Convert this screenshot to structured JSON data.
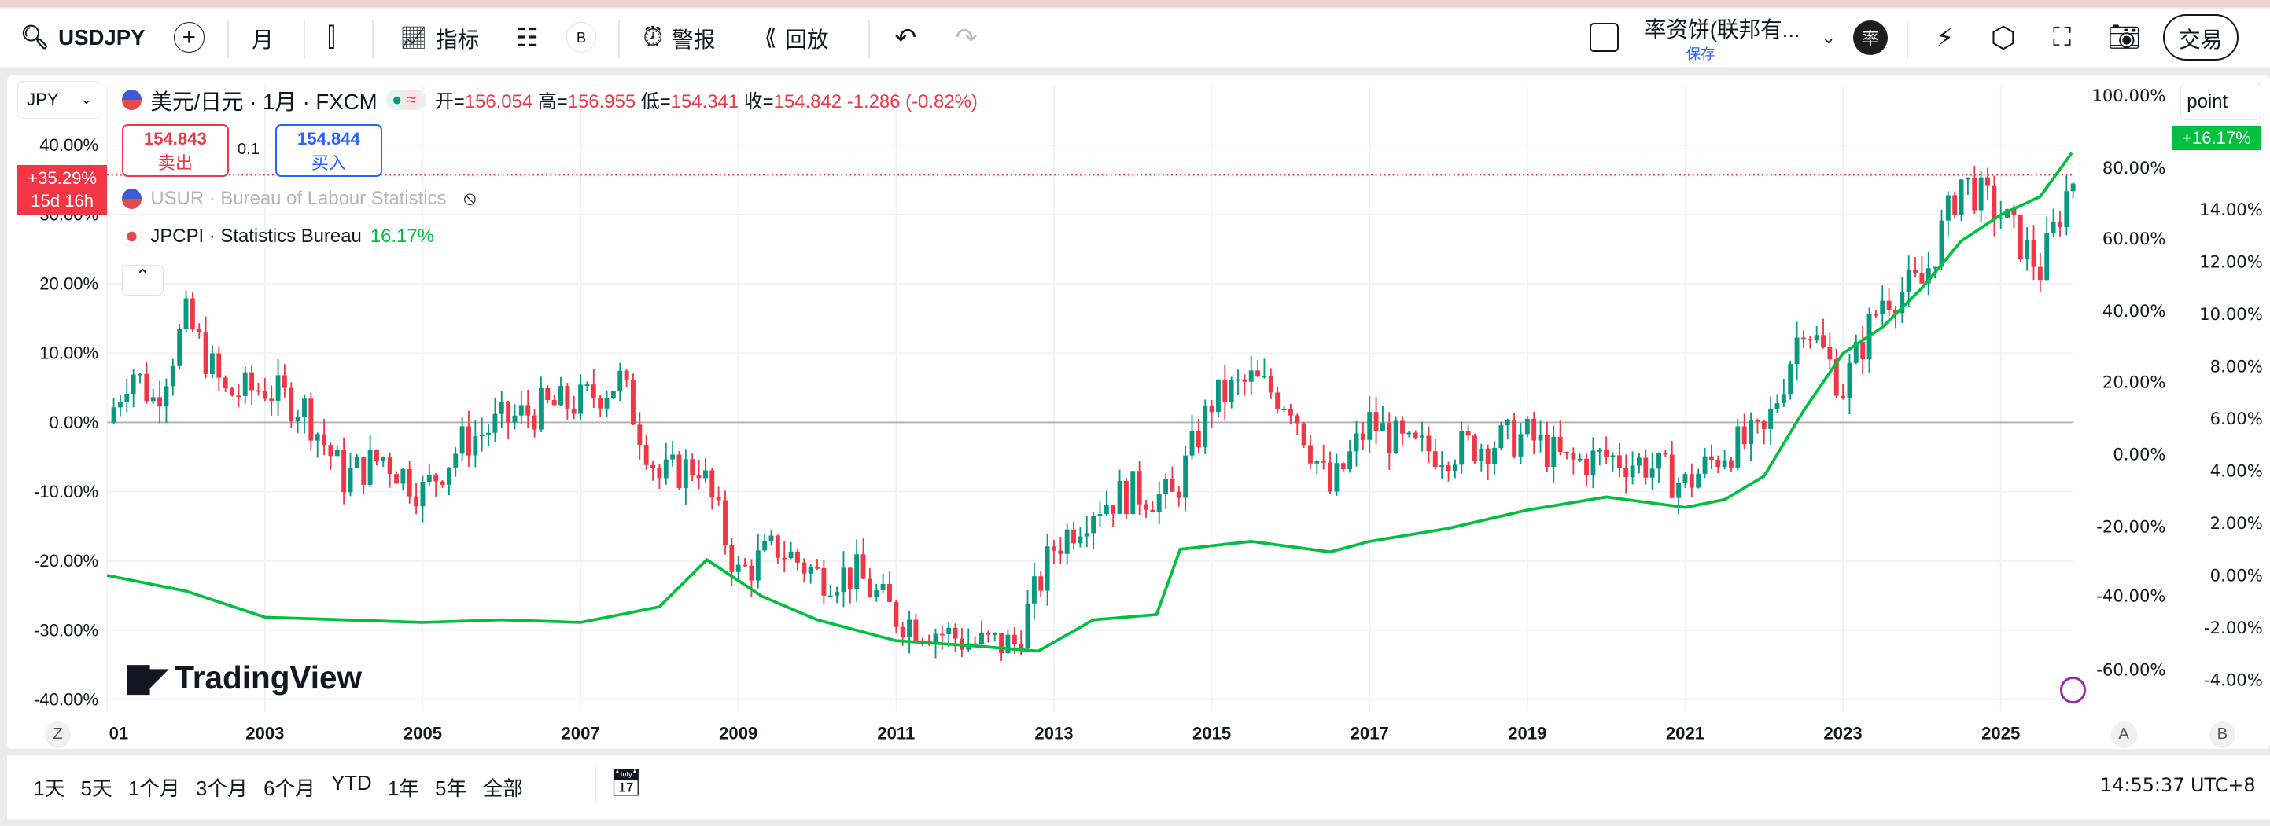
{
  "toolbar": {
    "symbol": "USDJPY",
    "interval": "月",
    "indicators": "指标",
    "alert": "警报",
    "replay": "回放",
    "badge_b": "B",
    "layout_name": "率资饼(联邦有...",
    "save": "保存",
    "avatar": "率",
    "trade": "交易"
  },
  "legend": {
    "currency": "JPY",
    "title": "美元/日元 · 1月 · FXCM",
    "open_label": "开=",
    "open": "156.054",
    "high_label": "高=",
    "high": "156.955",
    "low_label": "低=",
    "low": "154.341",
    "close_label": "收=",
    "close": "154.842",
    "change": "-1.286 (-0.82%)",
    "sell_price": "154.843",
    "sell_label": "卖出",
    "spread": "0.1",
    "buy_price": "154.844",
    "buy_label": "买入",
    "usur": "USUR · Bureau of Labour Statistics",
    "jpcpi": "JPCPI · Statistics Bureau",
    "jpcpi_value": "16.17%"
  },
  "price_badge": {
    "value": "+35.29%",
    "countdown": "15d 16h"
  },
  "point_label": "point",
  "green_badge": "+16.17%",
  "watermark": "TradingView",
  "axis_buttons": {
    "z": "Z",
    "a": "A",
    "b": "B"
  },
  "colors": {
    "up": "#089981",
    "down": "#f23645",
    "cpi": "#00c040",
    "accent": "#2962ff"
  },
  "chart_data": {
    "type": "candlestick+line",
    "x_ticks": [
      "01",
      "2003",
      "2005",
      "2007",
      "2009",
      "2011",
      "2013",
      "2015",
      "2017",
      "2019",
      "2021",
      "2023",
      "2025"
    ],
    "left_axis": {
      "ticks": [
        "40.00%",
        "30.00%",
        "20.00%",
        "10.00%",
        "0.00%",
        "-10.00%",
        "-20.00%",
        "-30.00%",
        "-40.00%"
      ],
      "range": [
        -42,
        45
      ]
    },
    "axis_a": {
      "ticks": [
        "100.00%",
        "80.00%",
        "60.00%",
        "40.00%",
        "20.00%",
        "0.00%",
        "-20.00%",
        "-40.00%",
        "-60.00%"
      ]
    },
    "axis_b": {
      "ticks": [
        "14.00%",
        "12.00%",
        "10.00%",
        "8.00%",
        "6.00%",
        "4.00%",
        "2.00%",
        "0.00%",
        "-2.00%",
        "-4.00%"
      ]
    },
    "usdjpy_pct": {
      "x": [
        2001,
        2001.3,
        2001.6,
        2002,
        2002.5,
        2003,
        2003.5,
        2004,
        2004.5,
        2005,
        2005.5,
        2006,
        2006.5,
        2007,
        2007.5,
        2008,
        2008.5,
        2009,
        2009.5,
        2010,
        2010.5,
        2011,
        2011.5,
        2012,
        2012.5,
        2013,
        2013.5,
        2014,
        2014.5,
        2015,
        2015.5,
        2016,
        2016.5,
        2017,
        2017.5,
        2018,
        2018.5,
        2019,
        2019.5,
        2020,
        2020.5,
        2021,
        2021.5,
        2022,
        2022.5,
        2023,
        2023.5,
        2024,
        2024.5,
        2025,
        2025.5,
        2025.9
      ],
      "y": [
        0,
        8,
        3,
        15,
        4,
        5,
        2,
        -8,
        -5,
        -10,
        -3,
        0,
        2,
        3,
        6,
        -8,
        -6,
        -22,
        -18,
        -22,
        -22,
        -28,
        -30,
        -32,
        -32,
        -18,
        -12,
        -10,
        -11,
        3,
        6,
        3,
        -10,
        0,
        -4,
        -4,
        -3,
        -2,
        -6,
        -5,
        -6,
        -9,
        -4,
        -2,
        15,
        5,
        18,
        20,
        35,
        30,
        22,
        35.29
      ]
    },
    "jpcpi": {
      "name": "JPCPI",
      "x": [
        2001,
        2002,
        2003,
        2004,
        2005,
        2006,
        2007,
        2008,
        2008.6,
        2009.3,
        2010,
        2011,
        2012,
        2012.8,
        2013.5,
        2014.3,
        2014.6,
        2015.5,
        2016.5,
        2017,
        2018,
        2019,
        2020,
        2021,
        2021.5,
        2022,
        2022.5,
        2023,
        2023.5,
        2024,
        2024.5,
        2025,
        2025.5,
        2025.9
      ],
      "y": [
        0,
        -0.6,
        -1.6,
        -1.7,
        -1.8,
        -1.7,
        -1.8,
        -1.2,
        0.6,
        -0.8,
        -1.7,
        -2.5,
        -2.7,
        -2.9,
        -1.7,
        -1.5,
        1.0,
        1.3,
        0.9,
        1.3,
        1.8,
        2.5,
        3.0,
        2.6,
        2.9,
        3.8,
        6.3,
        8.5,
        9.5,
        11,
        12.8,
        13.8,
        14.5,
        16.17
      ]
    }
  },
  "ranges": [
    "1天",
    "5天",
    "1个月",
    "3个月",
    "6个月",
    "YTD",
    "1年",
    "5年",
    "全部"
  ],
  "clock": "14:55:37 UTC+8"
}
